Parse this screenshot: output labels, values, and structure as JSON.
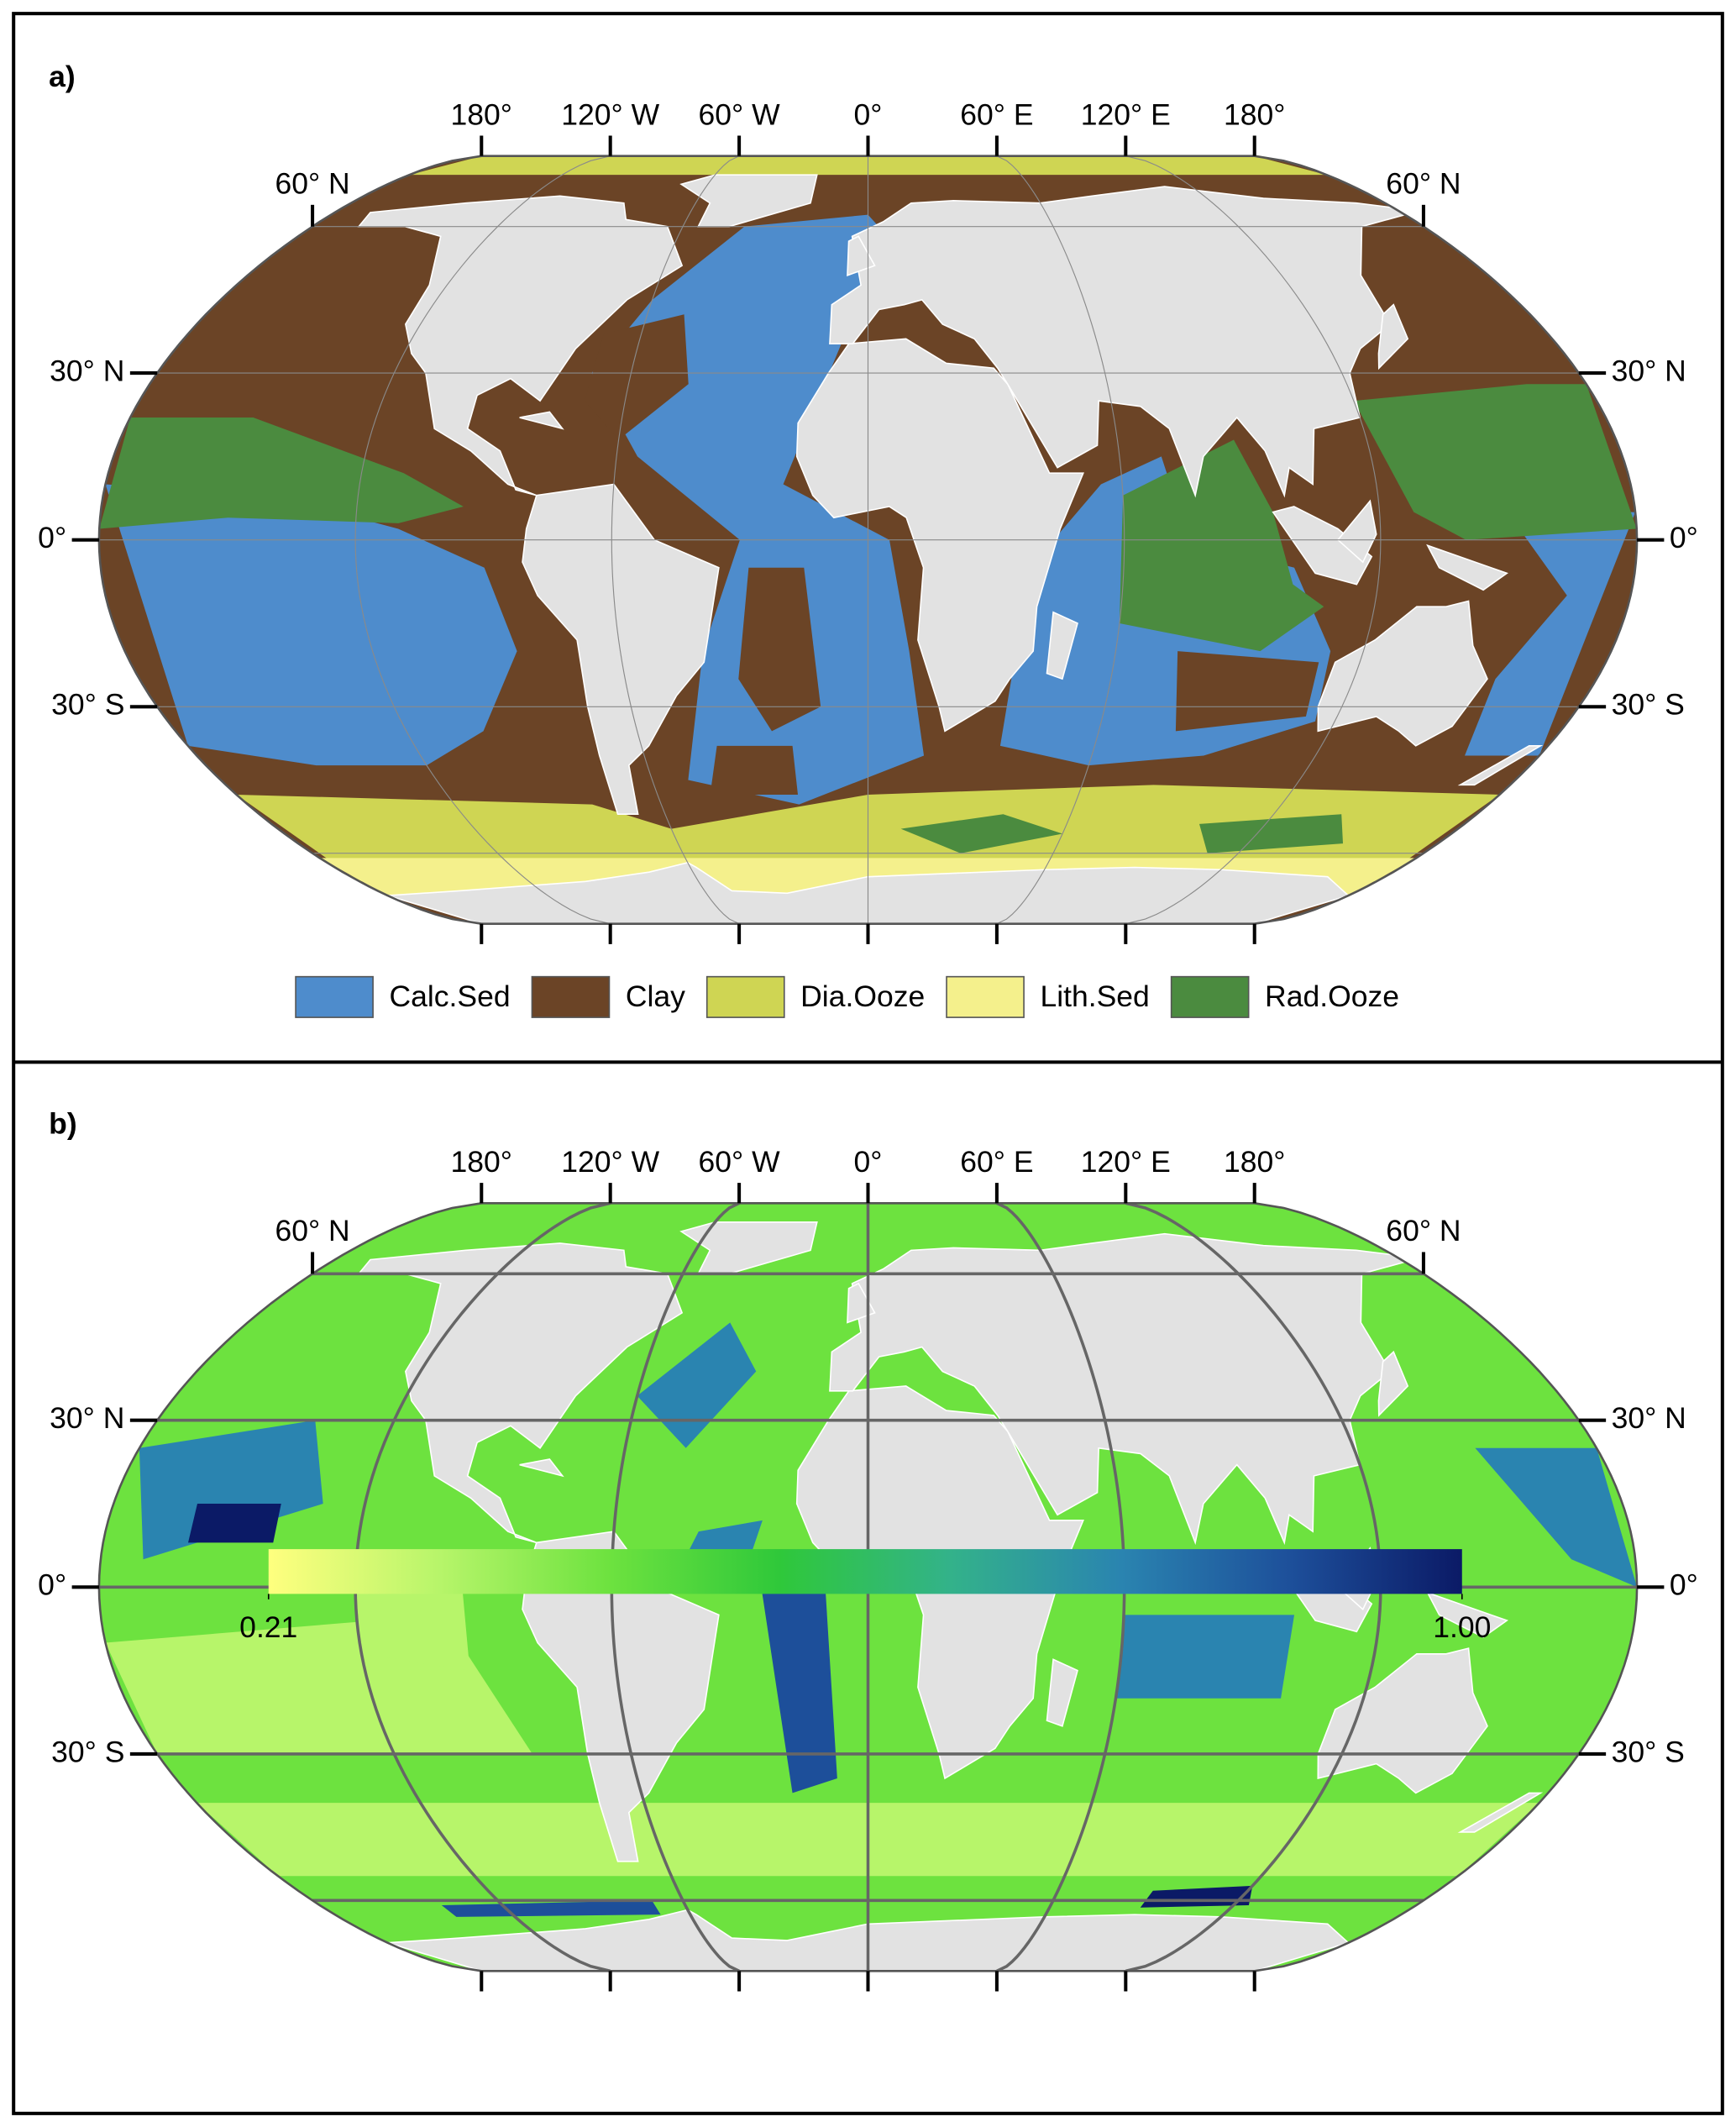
{
  "panels": [
    {
      "label": "a)",
      "lon_ticks": [
        {
          "value": -180,
          "label": "180°"
        },
        {
          "value": -120,
          "label": "120° W"
        },
        {
          "value": -60,
          "label": "60° W"
        },
        {
          "value": 0,
          "label": "0°"
        },
        {
          "value": 60,
          "label": "60° E"
        },
        {
          "value": 120,
          "label": "120° E"
        },
        {
          "value": 180,
          "label": "180°"
        }
      ],
      "lat_ticks": [
        {
          "value": 60,
          "label": "60° N"
        },
        {
          "value": 30,
          "label": "30° N"
        },
        {
          "value": 0,
          "label": "0°"
        },
        {
          "value": -30,
          "label": "30° S"
        }
      ],
      "legend": [
        {
          "name": "Calc.Sed",
          "color": "#4e8ccc"
        },
        {
          "name": "Clay",
          "color": "#6b4426"
        },
        {
          "name": "Dia.Ooze",
          "color": "#cfd553"
        },
        {
          "name": "Lith.Sed",
          "color": "#f4f08c"
        },
        {
          "name": "Rad.Ooze",
          "color": "#4b8b3f"
        }
      ]
    },
    {
      "label": "b)",
      "lon_ticks": [
        {
          "value": -180,
          "label": "180°"
        },
        {
          "value": -120,
          "label": "120° W"
        },
        {
          "value": -60,
          "label": "60° W"
        },
        {
          "value": 0,
          "label": "0°"
        },
        {
          "value": 60,
          "label": "60° E"
        },
        {
          "value": 120,
          "label": "120° E"
        },
        {
          "value": 180,
          "label": "180°"
        }
      ],
      "lat_ticks": [
        {
          "value": 60,
          "label": "60° N"
        },
        {
          "value": 30,
          "label": "30° N"
        },
        {
          "value": 0,
          "label": "0°"
        },
        {
          "value": -30,
          "label": "30° S"
        }
      ],
      "colorbar": {
        "colors": [
          "#ffff7f",
          "#b7f56a",
          "#6de23f",
          "#2fc83a",
          "#33b28a",
          "#2a84b0",
          "#1d4f9a",
          "#0b1a66"
        ],
        "ticks": [
          0.21,
          {
            "value": 1,
            "label": "1.00"
          }
        ]
      }
    }
  ]
}
